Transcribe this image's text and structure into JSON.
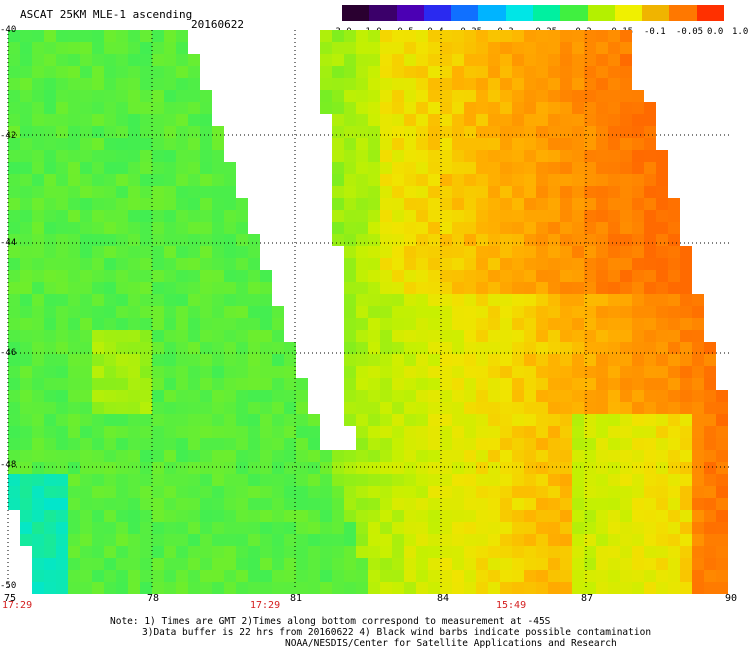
{
  "title": "ASCAT 25KM MLE-1 ascending",
  "date": "20160622",
  "colorbar": {
    "labels": [
      "-3.0",
      "-1.0",
      "-0.5",
      "-0.4",
      "-0.35",
      "-0.3",
      "-0.25",
      "-0.2",
      "-0.15",
      "-0.1",
      "-0.05",
      "0.0",
      "1.0"
    ],
    "colors": [
      "#2a0030",
      "#3b006a",
      "#4b00b4",
      "#2a2af0",
      "#1070ff",
      "#00b4ff",
      "#00e6e6",
      "#00f0a0",
      "#40f040",
      "#b4f000",
      "#f0f000",
      "#f0b400",
      "#ff7800",
      "#ff3000"
    ]
  },
  "map": {
    "lat_labels": [
      "-40",
      "-42",
      "-44",
      "-46",
      "-48",
      "-50"
    ],
    "lon_labels": [
      "75",
      "78",
      "81",
      "84",
      "87",
      "90"
    ],
    "time_labels": [
      "17:29",
      "17:29",
      "15:49"
    ]
  },
  "notes": [
    "Note: 1) Times are GMT 2)Times along bottom correspond to measurement at -45S",
    "3)Data buffer is 22 hrs from 20160622 4) Black wind barbs indicate possible contamination",
    "NOAA/NESDIS/Center for Satellite Applications and Research"
  ]
}
